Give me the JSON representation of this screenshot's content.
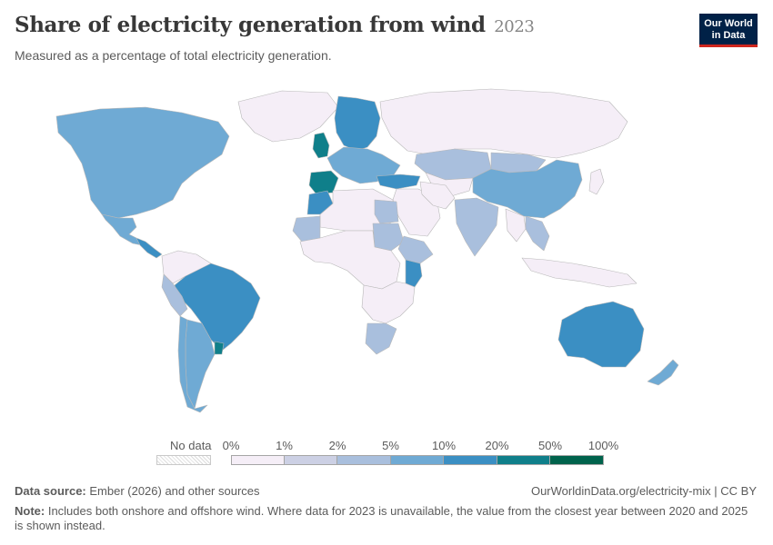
{
  "header": {
    "title": "Share of electricity generation from wind",
    "year": "2023",
    "subtitle": "Measured as a percentage of total electricity generation."
  },
  "logo": {
    "line1": "Our World",
    "line2": "in Data"
  },
  "legend": {
    "no_data_label": "No data",
    "ticks": [
      "0%",
      "1%",
      "2%",
      "5%",
      "10%",
      "20%",
      "50%",
      "100%"
    ],
    "colors": [
      "#f5eef7",
      "#ccd0e4",
      "#a9bfdd",
      "#6faad4",
      "#3b8fc3",
      "#0f7f8a",
      "#00634c"
    ]
  },
  "map_data": {
    "regions": [
      {
        "name": "North America",
        "level": 4
      },
      {
        "name": "Mexico",
        "level": 4
      },
      {
        "name": "Central America",
        "level": 5
      },
      {
        "name": "Greenland",
        "level": 1
      },
      {
        "name": "Brazil",
        "level": 5
      },
      {
        "name": "Colombia/Venezuela",
        "level": 1
      },
      {
        "name": "Peru",
        "level": 3
      },
      {
        "name": "Argentina",
        "level": 4
      },
      {
        "name": "Uruguay",
        "level": 6
      },
      {
        "name": "Chile",
        "level": 4
      },
      {
        "name": "Europe (north)",
        "level": 5
      },
      {
        "name": "Europe (south)",
        "level": 4
      },
      {
        "name": "Spain/Portugal",
        "level": 6
      },
      {
        "name": "Ireland/UK",
        "level": 6
      },
      {
        "name": "Russia",
        "level": 1
      },
      {
        "name": "Kazakhstan",
        "level": 3
      },
      {
        "name": "Central Asia",
        "level": 1
      },
      {
        "name": "Turkey",
        "level": 5
      },
      {
        "name": "Middle East",
        "level": 1
      },
      {
        "name": "Iran",
        "level": 1
      },
      {
        "name": "Morocco",
        "level": 5
      },
      {
        "name": "North Africa",
        "level": 1
      },
      {
        "name": "Mauritania",
        "level": 3
      },
      {
        "name": "Egypt",
        "level": 3
      },
      {
        "name": "Sudan",
        "level": 3
      },
      {
        "name": "Ethiopia",
        "level": 3
      },
      {
        "name": "Kenya",
        "level": 5
      },
      {
        "name": "Central Africa",
        "level": 1
      },
      {
        "name": "Southern Africa",
        "level": 1
      },
      {
        "name": "South Africa",
        "level": 3
      },
      {
        "name": "India",
        "level": 3
      },
      {
        "name": "China",
        "level": 4
      },
      {
        "name": "Mongolia",
        "level": 3
      },
      {
        "name": "Japan",
        "level": 1
      },
      {
        "name": "Southeast Asia",
        "level": 1
      },
      {
        "name": "Vietnam/Thailand",
        "level": 3
      },
      {
        "name": "Indonesia",
        "level": 1
      },
      {
        "name": "Australia",
        "level": 5
      },
      {
        "name": "New Zealand",
        "level": 4
      }
    ]
  },
  "footer": {
    "source_label": "Data source:",
    "source_text": " Ember (2026) and other sources",
    "url": "OurWorldinData.org/electricity-mix | CC BY",
    "note_label": "Note:",
    "note_text": " Includes both onshore and offshore wind. Where data for 2023 is unavailable, the value from the closest year between 2020 and 2025 is shown instead."
  }
}
